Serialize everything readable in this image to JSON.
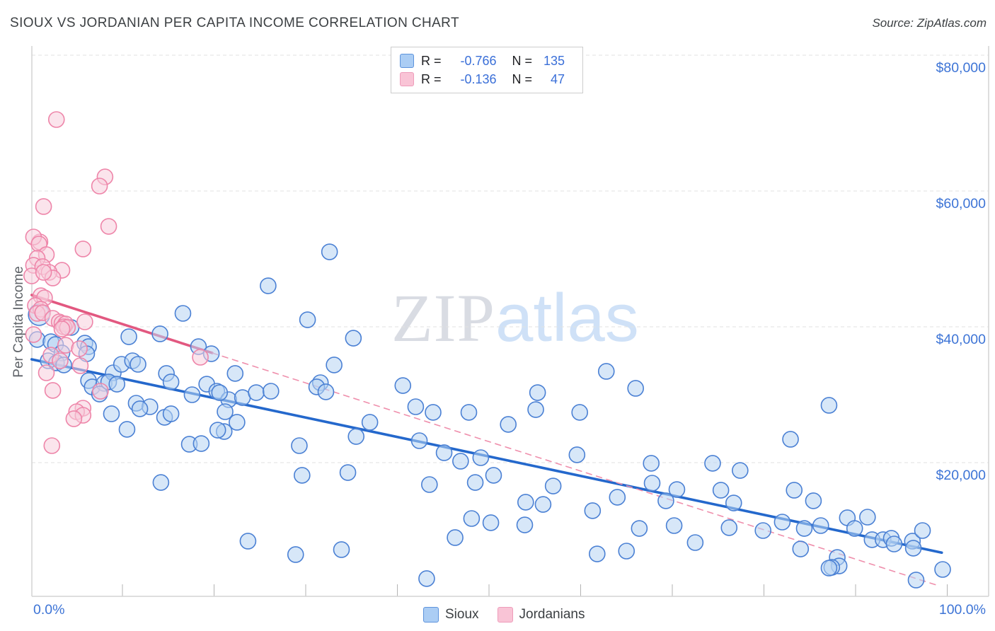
{
  "header": {
    "title": "SIOUX VS JORDANIAN PER CAPITA INCOME CORRELATION CHART",
    "source": "Source: ZipAtlas.com"
  },
  "watermark": {
    "zip": "ZIP",
    "atlas": "atlas"
  },
  "stats_legend": {
    "rows": [
      {
        "series": "Sioux",
        "r_label": "R =",
        "r_value": "-0.766",
        "n_label": "N =",
        "n_value": "135"
      },
      {
        "series": "Jordanians",
        "r_label": "R =",
        "r_value": "-0.136",
        "n_label": "N =",
        "n_value": "47"
      }
    ]
  },
  "series_legend": [
    {
      "label": "Sioux"
    },
    {
      "label": "Jordanians"
    }
  ],
  "colors": {
    "sioux_stroke": "#4a80d4",
    "sioux_fill": "#b7d3f3",
    "jordanian_stroke": "#ee85a9",
    "jordanian_fill": "#f8cddc",
    "sioux_trend": "#2468cc",
    "jordanian_trend": "#e25880",
    "jordanian_trend_dashed": "#ef8fac",
    "gridline": "#e2e2e2",
    "tick": "#b3b3b3",
    "border": "#d4d4d4",
    "axis_text": "#3d74d6"
  },
  "chart_data": {
    "type": "scatter",
    "title": "SIOUX VS JORDANIAN PER CAPITA INCOME CORRELATION CHART",
    "xlabel": "",
    "ylabel": "Per Capita Income",
    "x_axis_left_label": "0.0%",
    "x_axis_right_label": "100.0%",
    "xlim_pct": [
      0,
      104.5
    ],
    "ylim_dollars": [
      0,
      81500
    ],
    "grid": true,
    "legend_position": "top-center",
    "y_ticks": [
      {
        "value": 80000,
        "label": "$80,000"
      },
      {
        "value": 60000,
        "label": "$60,000"
      },
      {
        "value": 40000,
        "label": "$40,000"
      },
      {
        "value": 20000,
        "label": "$20,000"
      }
    ],
    "x_ticks_pct": [
      10,
      20,
      30,
      40,
      50,
      60,
      70,
      80,
      90,
      100
    ],
    "series": [
      {
        "name": "Sioux",
        "R": -0.766,
        "N": 135,
        "points": [
          [
            0.9,
            41770,
            15
          ],
          [
            4.4,
            39900
          ],
          [
            0.7,
            38130
          ],
          [
            2.2,
            37810
          ],
          [
            2.7,
            37400
          ],
          [
            3.4,
            36150
          ],
          [
            5.9,
            37600
          ],
          [
            6.3,
            37080
          ],
          [
            6.1,
            36040
          ],
          [
            1.9,
            35000
          ],
          [
            2.8,
            34690
          ],
          [
            3.6,
            34380
          ],
          [
            6.3,
            32080
          ],
          [
            6.7,
            31150
          ],
          [
            8.0,
            31670
          ],
          [
            7.5,
            30100
          ],
          [
            9.0,
            33230
          ],
          [
            9.9,
            34480
          ],
          [
            11.1,
            35000
          ],
          [
            11.7,
            34480
          ],
          [
            8.5,
            31880
          ],
          [
            9.4,
            31560
          ],
          [
            8.8,
            27190
          ],
          [
            10.5,
            24900
          ],
          [
            11.5,
            28750
          ],
          [
            13.0,
            28230
          ],
          [
            11.9,
            27920
          ],
          [
            14.8,
            33130
          ],
          [
            15.3,
            31880
          ],
          [
            14.6,
            26670
          ],
          [
            10.7,
            38540
          ],
          [
            14.1,
            38960
          ],
          [
            16.6,
            41980
          ],
          [
            18.3,
            37080
          ],
          [
            19.7,
            36040
          ],
          [
            17.6,
            30000
          ],
          [
            19.2,
            31560
          ],
          [
            20.3,
            30520
          ],
          [
            21.6,
            29270
          ],
          [
            15.3,
            27190
          ],
          [
            21.1,
            24580
          ],
          [
            17.3,
            22710
          ],
          [
            18.6,
            22810
          ],
          [
            20.6,
            30310
          ],
          [
            23.1,
            29580
          ],
          [
            24.6,
            30310
          ],
          [
            26.2,
            30520
          ],
          [
            21.2,
            27500
          ],
          [
            22.5,
            25940
          ],
          [
            20.4,
            24790
          ],
          [
            22.3,
            33130
          ],
          [
            25.9,
            46040
          ],
          [
            32.6,
            51040
          ],
          [
            30.2,
            41040
          ],
          [
            35.2,
            38330
          ],
          [
            33.1,
            34380
          ],
          [
            31.6,
            31770
          ],
          [
            31.2,
            31150
          ],
          [
            32.2,
            30420
          ],
          [
            40.6,
            31350
          ],
          [
            42.0,
            28230
          ],
          [
            43.9,
            27400
          ],
          [
            47.8,
            27400
          ],
          [
            52.1,
            25630
          ],
          [
            37.0,
            25940
          ],
          [
            35.5,
            23850
          ],
          [
            29.3,
            22500
          ],
          [
            42.4,
            23230
          ],
          [
            45.1,
            21460
          ],
          [
            46.9,
            20210
          ],
          [
            49.1,
            20730
          ],
          [
            43.2,
            2920
          ],
          [
            43.5,
            16770
          ],
          [
            48.5,
            17080
          ],
          [
            50.5,
            18130
          ],
          [
            57.0,
            16560
          ],
          [
            54.0,
            14170
          ],
          [
            55.9,
            13850
          ],
          [
            48.1,
            11770
          ],
          [
            50.2,
            11150
          ],
          [
            53.9,
            10830
          ],
          [
            46.3,
            8960
          ],
          [
            61.3,
            12920
          ],
          [
            64.0,
            14900
          ],
          [
            67.8,
            16980
          ],
          [
            66.4,
            10310
          ],
          [
            61.8,
            6560
          ],
          [
            65.0,
            6980
          ],
          [
            59.6,
            21150
          ],
          [
            67.7,
            19900
          ],
          [
            14.2,
            17080
          ],
          [
            29.6,
            18130
          ],
          [
            34.6,
            18540
          ],
          [
            23.7,
            8440
          ],
          [
            28.9,
            6460
          ],
          [
            33.9,
            7190
          ],
          [
            62.8,
            33440
          ],
          [
            66.0,
            30940
          ],
          [
            55.3,
            30310
          ],
          [
            55.1,
            27810
          ],
          [
            59.9,
            27400
          ],
          [
            87.1,
            28440
          ],
          [
            82.9,
            23440
          ],
          [
            74.4,
            19900
          ],
          [
            77.4,
            18850
          ],
          [
            70.5,
            16040
          ],
          [
            69.3,
            14380
          ],
          [
            75.3,
            15940
          ],
          [
            76.7,
            14060
          ],
          [
            83.3,
            15940
          ],
          [
            85.4,
            14380
          ],
          [
            76.2,
            10420
          ],
          [
            79.9,
            10000
          ],
          [
            82.0,
            11250
          ],
          [
            84.4,
            10310
          ],
          [
            86.2,
            10730
          ],
          [
            84.0,
            7290
          ],
          [
            72.5,
            8230
          ],
          [
            70.2,
            10730
          ],
          [
            89.1,
            11880
          ],
          [
            91.3,
            11980
          ],
          [
            89.9,
            10310
          ],
          [
            91.8,
            8650
          ],
          [
            93.0,
            8650
          ],
          [
            93.9,
            8860
          ],
          [
            94.2,
            8020
          ],
          [
            96.2,
            8440
          ],
          [
            96.3,
            7400
          ],
          [
            97.3,
            10000
          ],
          [
            88.0,
            6040
          ],
          [
            88.2,
            4790
          ],
          [
            87.4,
            4580
          ],
          [
            87.1,
            4480
          ],
          [
            96.6,
            2710
          ],
          [
            99.5,
            4270
          ]
        ]
      },
      {
        "name": "Jordanians",
        "R": -0.136,
        "N": 47,
        "points": [
          [
            2.8,
            70520
          ],
          [
            8.1,
            62080
          ],
          [
            7.5,
            60730
          ],
          [
            1.4,
            57710
          ],
          [
            8.5,
            54790
          ],
          [
            5.7,
            51460
          ],
          [
            3.4,
            48330
          ],
          [
            1.0,
            52500
          ],
          [
            0.3,
            53230
          ],
          [
            0.9,
            52190
          ],
          [
            1.7,
            50630
          ],
          [
            0.7,
            50100
          ],
          [
            0.3,
            49060
          ],
          [
            1.3,
            48860
          ],
          [
            2.0,
            48020
          ],
          [
            0.1,
            47500
          ],
          [
            2.4,
            47190
          ],
          [
            1.4,
            48020
          ],
          [
            1.1,
            44580
          ],
          [
            1.5,
            44270
          ],
          [
            0.5,
            43130
          ],
          [
            1.1,
            42600
          ],
          [
            0.7,
            41980
          ],
          [
            1.3,
            42080
          ],
          [
            2.4,
            41250
          ],
          [
            3.1,
            40730
          ],
          [
            3.4,
            40520
          ],
          [
            3.8,
            40420
          ],
          [
            3.6,
            40000
          ],
          [
            4.0,
            39900
          ],
          [
            3.4,
            39690
          ],
          [
            5.9,
            40730
          ],
          [
            0.3,
            38860
          ],
          [
            3.8,
            37290
          ],
          [
            5.3,
            36770
          ],
          [
            2.2,
            35830
          ],
          [
            3.2,
            35000
          ],
          [
            5.4,
            34270
          ],
          [
            1.7,
            33230
          ],
          [
            2.4,
            30630
          ],
          [
            7.6,
            30520
          ],
          [
            5.7,
            28020
          ],
          [
            5.0,
            27500
          ],
          [
            5.7,
            26980
          ],
          [
            4.7,
            26460
          ],
          [
            2.3,
            22500
          ],
          [
            18.5,
            35520
          ]
        ]
      }
    ],
    "trend_lines": [
      {
        "series": "Sioux",
        "style": "solid",
        "x1_pct": 0.1,
        "y1": 35210,
        "x2_pct": 99.4,
        "y2": 6750
      },
      {
        "series": "Jordanians",
        "style": "solid",
        "x1_pct": 0.1,
        "y1": 44690,
        "x2_pct": 19.8,
        "y2": 36150
      },
      {
        "series": "Jordanians",
        "style": "dashed",
        "x1_pct": 19.8,
        "y1": 36150,
        "x2_pct": 99.0,
        "y2": 1900
      }
    ]
  }
}
